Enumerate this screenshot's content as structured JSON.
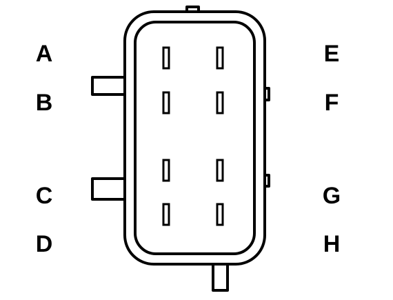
{
  "connector": {
    "pin_labels_left": [
      "A",
      "B",
      "C",
      "D"
    ],
    "pin_labels_right": [
      "E",
      "F",
      "G",
      "H"
    ],
    "colors": {
      "stroke": "#000000",
      "background": "#ffffff"
    }
  }
}
